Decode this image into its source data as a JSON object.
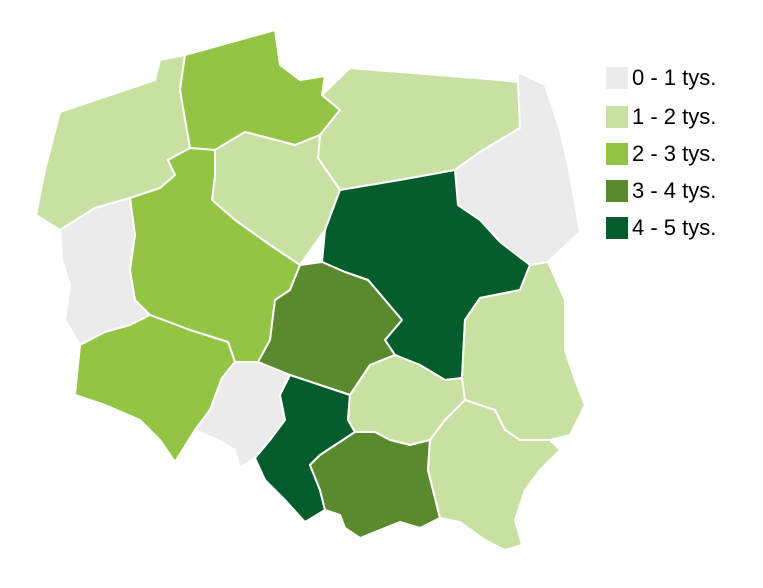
{
  "legend": {
    "items": [
      {
        "label": "0 - 1 tys.",
        "color": "#ebebeb"
      },
      {
        "label": "1 - 2 tys.",
        "color": "#c8e0a2"
      },
      {
        "label": "2 - 3 tys.",
        "color": "#93c443"
      },
      {
        "label": "3 - 4 tys.",
        "color": "#5b8a2e"
      },
      {
        "label": "4 - 5 tys.",
        "color": "#035c2c"
      }
    ]
  },
  "regions": [
    {
      "name": "zachodniopomorskie",
      "class": 1
    },
    {
      "name": "pomorskie",
      "class": 2
    },
    {
      "name": "warminsko-mazurskie",
      "class": 1
    },
    {
      "name": "podlaskie",
      "class": 0
    },
    {
      "name": "lubuskie",
      "class": 0
    },
    {
      "name": "wielkopolskie",
      "class": 2
    },
    {
      "name": "kujawsko-pomorskie",
      "class": 1
    },
    {
      "name": "mazowieckie",
      "class": 4
    },
    {
      "name": "lodzkie",
      "class": 3
    },
    {
      "name": "dolnoslaskie",
      "class": 2
    },
    {
      "name": "opolskie",
      "class": 0
    },
    {
      "name": "slaskie",
      "class": 4
    },
    {
      "name": "swietokrzyskie",
      "class": 1
    },
    {
      "name": "lubelskie",
      "class": 1
    },
    {
      "name": "malopolskie",
      "class": 3
    },
    {
      "name": "podkarpackie",
      "class": 1
    }
  ]
}
